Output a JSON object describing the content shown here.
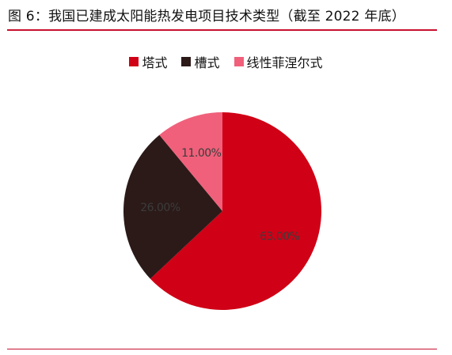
{
  "figure": {
    "title": "图 6：我国已建成太阳能热发电项目技术类型（截至 2022 年底）"
  },
  "colors": {
    "accent_rule": "#c8102e"
  },
  "chart_data": {
    "type": "pie",
    "title": "",
    "legend_position": "top-center",
    "start_angle_deg": 0,
    "direction": "clockwise",
    "slices": [
      {
        "label": "塔式",
        "value": 63.0,
        "display": "63.00%",
        "color": "#d00016"
      },
      {
        "label": "槽式",
        "value": 26.0,
        "display": "26.00%",
        "color": "#2b1a18"
      },
      {
        "label": "线性菲涅尔式",
        "value": 11.0,
        "display": "11.00%",
        "color": "#f0607a"
      }
    ]
  }
}
